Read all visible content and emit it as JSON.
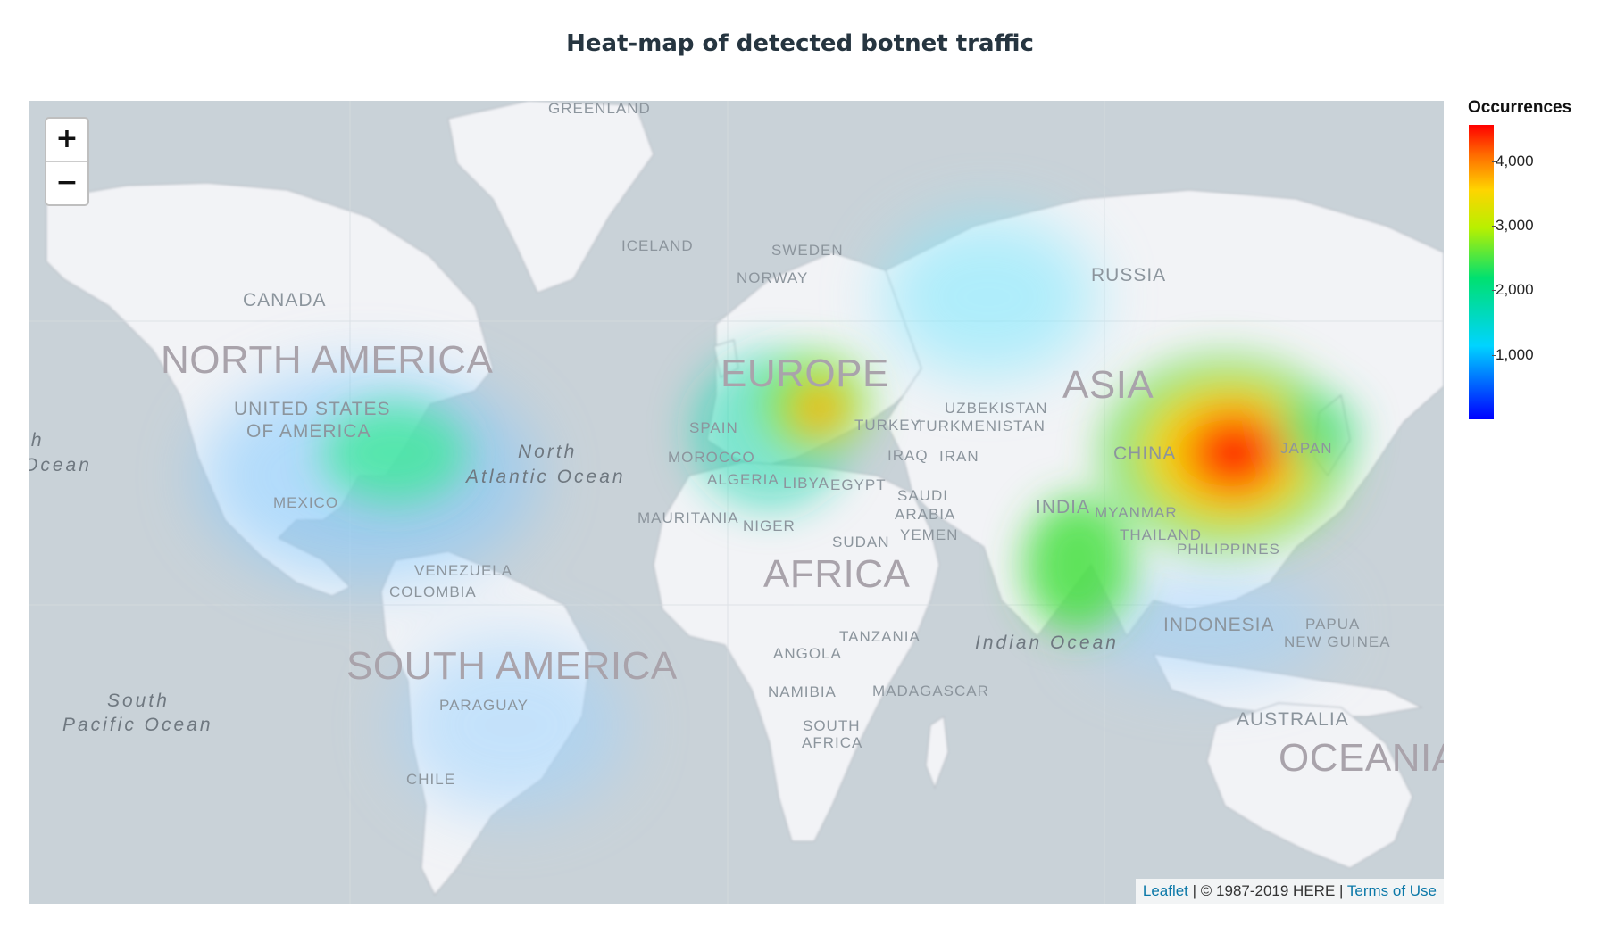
{
  "title": "Heat-map of detected botnet traffic",
  "map": {
    "zoom_in_label": "+",
    "zoom_out_label": "−",
    "attribution": {
      "leaflet_link": "Leaflet",
      "separator_1": " | ",
      "copyright": "© 1987-2019 HERE",
      "separator_2": " | ",
      "terms_link": "Terms of Use"
    },
    "labels": {
      "greenland": "GREENLAND",
      "iceland": "ICELAND",
      "sweden": "SWEDEN",
      "norway": "NORWAY",
      "russia": "RUSSIA",
      "canada": "CANADA",
      "north_america": "NORTH AMERICA",
      "usa_line1": "UNITED STATES",
      "usa_line2": "OF AMERICA",
      "mexico": "MEXICO",
      "europe": "EUROPE",
      "asia": "ASIA",
      "spain": "SPAIN",
      "turkey": "TURKEY",
      "turkmenistan": "TURKMENISTAN",
      "uzbekistan": "UZBEKISTAN",
      "iraq": "IRAQ",
      "iran": "IRAN",
      "china": "CHINA",
      "japan": "JAPAN",
      "morocco": "MOROCCO",
      "algeria": "ALGERIA",
      "libya": "LIBYA",
      "egypt": "EGYPT",
      "saudi_line1": "SAUDI",
      "saudi_line2": "ARABIA",
      "yemen": "YEMEN",
      "india": "INDIA",
      "myanmar": "MYANMAR",
      "thailand": "THAILAND",
      "philippines": "PHILIPPINES",
      "mauritania": "MAURITANIA",
      "niger": "NIGER",
      "sudan": "SUDAN",
      "africa": "AFRICA",
      "venezuela": "VENEZUELA",
      "colombia": "COLOMBIA",
      "south_america": "SOUTH AMERICA",
      "paraguay": "PARAGUAY",
      "chile": "CHILE",
      "tanzania": "TANZANIA",
      "angola": "ANGOLA",
      "namibia": "NAMIBIA",
      "madagascar": "MADAGASCAR",
      "south_africa_line1": "SOUTH",
      "south_africa_line2": "AFRICA",
      "indonesia": "INDONESIA",
      "papua_line1": "PAPUA",
      "papua_line2": "NEW GUINEA",
      "australia": "AUSTRALIA",
      "oceania": "OCEANIA",
      "north_atlantic_line1": "North",
      "north_atlantic_line2": "Atlantic Ocean",
      "south_pacific_line1": "South",
      "south_pacific_line2": "Pacific Ocean",
      "indian_ocean": "Indian Ocean",
      "pacific_cut_line1": "th",
      "pacific_cut_line2": "Ocean"
    }
  },
  "legend": {
    "title": "Occurrences",
    "ticks": [
      "4,000",
      "3,000",
      "2,000",
      "1,000"
    ],
    "colors": [
      "#0000ff",
      "#00d4ff",
      "#00e070",
      "#b8f000",
      "#ffd400",
      "#ff6a00",
      "#ff0000"
    ]
  }
}
